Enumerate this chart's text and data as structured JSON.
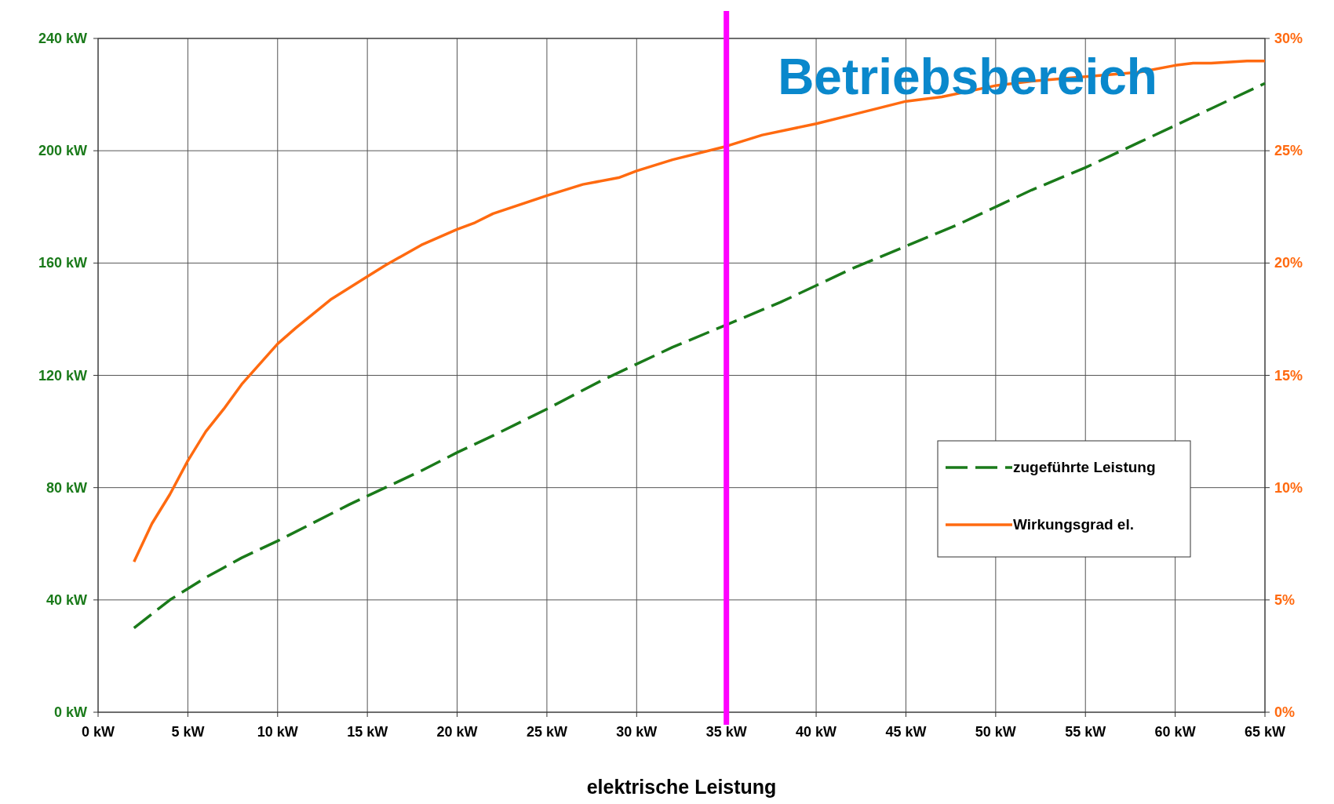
{
  "chart_data": {
    "type": "line",
    "xlabel": "elektrische Leistung",
    "annotations": [
      "Betriebsbereich"
    ],
    "xlim": [
      0,
      65
    ],
    "xticks": [
      {
        "value": 0,
        "label": "0 kW"
      },
      {
        "value": 5,
        "label": "5 kW"
      },
      {
        "value": 10,
        "label": "10 kW"
      },
      {
        "value": 15,
        "label": "15 kW"
      },
      {
        "value": 20,
        "label": "20 kW"
      },
      {
        "value": 25,
        "label": "25 kW"
      },
      {
        "value": 30,
        "label": "30 kW"
      },
      {
        "value": 35,
        "label": "35 kW"
      },
      {
        "value": 40,
        "label": "40 kW"
      },
      {
        "value": 45,
        "label": "45 kW"
      },
      {
        "value": 50,
        "label": "50 kW"
      },
      {
        "value": 55,
        "label": "55 kW"
      },
      {
        "value": 60,
        "label": "60 kW"
      },
      {
        "value": 65,
        "label": "65 kW"
      }
    ],
    "ylim": [
      0,
      240
    ],
    "yticks": [
      {
        "value": 0,
        "label": "0 kW"
      },
      {
        "value": 40,
        "label": "40 kW"
      },
      {
        "value": 80,
        "label": "80 kW"
      },
      {
        "value": 120,
        "label": "120 kW"
      },
      {
        "value": 160,
        "label": "160 kW"
      },
      {
        "value": 200,
        "label": "200 kW"
      },
      {
        "value": 240,
        "label": "240 kW"
      }
    ],
    "y2lim": [
      0,
      30
    ],
    "y2ticks": [
      {
        "value": 0,
        "label": "0%"
      },
      {
        "value": 5,
        "label": "5%"
      },
      {
        "value": 10,
        "label": "10%"
      },
      {
        "value": 15,
        "label": "15%"
      },
      {
        "value": 20,
        "label": "20%"
      },
      {
        "value": 25,
        "label": "25%"
      },
      {
        "value": 30,
        "label": "30%"
      }
    ],
    "grid": true,
    "legend": "right",
    "ref_lines": [
      {
        "axis": "x",
        "value": 35,
        "color": "#ff00ff"
      }
    ],
    "series": [
      {
        "name": "zugeführte Leistung",
        "color": "#1a7a1a",
        "line_style": "dashed",
        "x": [
          2,
          3,
          4,
          5,
          6,
          7,
          8,
          9,
          10,
          12,
          14,
          16,
          18,
          20,
          22,
          25,
          28,
          30,
          32,
          35,
          38,
          40,
          42,
          45,
          48,
          50,
          52,
          55,
          58,
          60,
          62,
          65
        ],
        "values": [
          30,
          35,
          40,
          44,
          48,
          51.5,
          55,
          58,
          61,
          67.5,
          74,
          80,
          86,
          92.5,
          98.5,
          108,
          118,
          124,
          130,
          138,
          146,
          152,
          158,
          166,
          174,
          180,
          186,
          194,
          203,
          209,
          215,
          224
        ]
      },
      {
        "name": "Wirkungsgrad el.",
        "color": "#ff6a10",
        "line_style": "solid",
        "axis": "y2",
        "x": [
          2,
          3,
          4,
          5,
          6,
          7,
          8,
          10,
          11,
          13,
          15,
          16,
          18,
          20,
          21,
          22,
          25,
          27,
          29,
          30,
          32,
          35,
          37,
          40,
          42,
          45,
          47,
          50,
          52,
          55,
          58,
          60,
          61,
          62,
          64,
          65
        ],
        "values": [
          6.7,
          8.4,
          9.7,
          11.2,
          12.5,
          13.5,
          14.6,
          16.4,
          17.1,
          18.4,
          19.4,
          19.9,
          20.8,
          21.5,
          21.8,
          22.2,
          23.0,
          23.5,
          23.8,
          24.1,
          24.6,
          25.2,
          25.7,
          26.2,
          26.6,
          27.2,
          27.4,
          27.9,
          28.1,
          28.3,
          28.5,
          28.8,
          28.9,
          28.9,
          29.0,
          29.0
        ]
      }
    ]
  }
}
